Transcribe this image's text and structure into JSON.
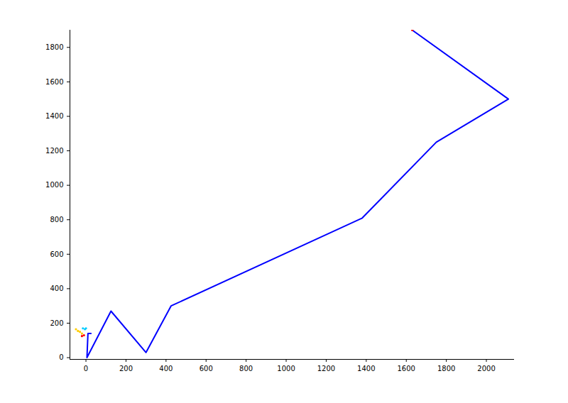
{
  "chart_data": {
    "type": "line",
    "xlim": [
      -80,
      2140
    ],
    "ylim": [
      -10,
      1900
    ],
    "xticks": [
      0,
      200,
      400,
      600,
      800,
      1000,
      1200,
      1400,
      1600,
      1800,
      2000
    ],
    "yticks": [
      0,
      200,
      400,
      600,
      800,
      1000,
      1200,
      1400,
      1600,
      1800
    ],
    "grid": false,
    "series": [
      {
        "color": "#0000ff",
        "type": "line",
        "x": [
          25,
          10,
          5,
          125,
          300,
          425,
          1380,
          1750,
          2110,
          1630
        ],
        "values": [
          140,
          140,
          0,
          270,
          30,
          300,
          810,
          1250,
          1500,
          1900
        ]
      },
      {
        "color": "#ff0000",
        "type": "scatter",
        "marker": "dot",
        "x": [
          1630
        ],
        "values": [
          1900
        ]
      },
      {
        "color": "#ffcc00",
        "type": "scatter",
        "marker": "dot",
        "x": [
          -50,
          -40,
          -30,
          -20
        ],
        "values": [
          165,
          155,
          150,
          140
        ]
      },
      {
        "color": "#00ccff",
        "type": "scatter",
        "marker": "dot",
        "x": [
          -15,
          -5,
          0
        ],
        "values": [
          170,
          165,
          170
        ]
      },
      {
        "color": "#ff0000",
        "type": "scatter",
        "marker": "dot",
        "x": [
          -20,
          -10
        ],
        "values": [
          125,
          130
        ]
      }
    ]
  }
}
